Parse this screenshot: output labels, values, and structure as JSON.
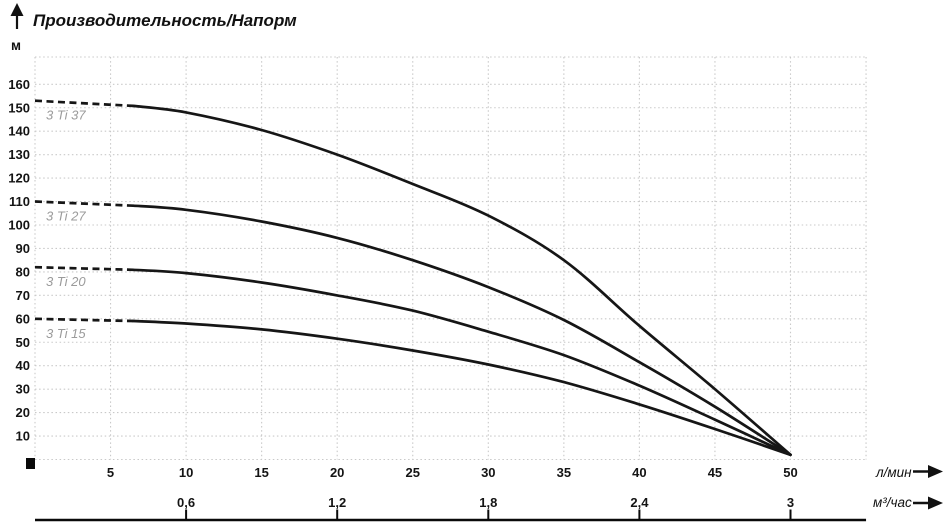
{
  "title": "Производительность/Напорм",
  "y_axis": {
    "unit": "м",
    "ticks": [
      "10",
      "20",
      "30",
      "40",
      "50",
      "60",
      "70",
      "80",
      "90",
      "100",
      "110",
      "120",
      "130",
      "140",
      "150",
      "160"
    ]
  },
  "x_axis_primary": {
    "unit": "л/мин",
    "ticks": [
      "5",
      "10",
      "15",
      "20",
      "25",
      "30",
      "35",
      "40",
      "45",
      "50"
    ]
  },
  "x_axis_secondary": {
    "unit": "м³/час",
    "ticks": [
      "0,6",
      "1,2",
      "1,8",
      "2,4",
      "3"
    ],
    "at_lmin": [
      10,
      20,
      30,
      40,
      50
    ]
  },
  "colors": {
    "curve": "#161616",
    "grid": "#c9c9c9",
    "curve_label": "#9b9b9b",
    "text": "#141414",
    "background": "#ffffff"
  },
  "chart_data": {
    "type": "line",
    "title": "Производительность/Напорм",
    "xlabel": "л/мин",
    "x2label": "м³/час",
    "ylabel": "м",
    "xlim": [
      0,
      55
    ],
    "ylim": [
      0,
      171
    ],
    "grid": "dotted",
    "x": [
      0,
      5,
      10,
      15,
      20,
      25,
      30,
      35,
      40,
      45,
      50
    ],
    "series": [
      {
        "name": "3 Ti 37",
        "head_at_zero_flow_m": 153,
        "values": [
          153,
          152,
          148,
          140.5,
          130,
          117.5,
          104,
          85,
          57,
          30,
          2
        ]
      },
      {
        "name": "3 Ti 27",
        "head_at_zero_flow_m": 110,
        "values": [
          110,
          109,
          106.5,
          101.5,
          94.5,
          85,
          73.5,
          59.5,
          41.5,
          22.5,
          2
        ]
      },
      {
        "name": "3 Ti 20",
        "head_at_zero_flow_m": 82,
        "values": [
          82,
          81.5,
          79.5,
          75.5,
          70,
          63.5,
          54.5,
          44.5,
          31.5,
          17,
          2
        ]
      },
      {
        "name": "3 Ti 15",
        "head_at_zero_flow_m": 60,
        "values": [
          60,
          59.5,
          58,
          55.5,
          51.5,
          46.5,
          40.5,
          33,
          23.5,
          13,
          2
        ]
      }
    ],
    "notes": "Dashed segment on each curve from Q=0 to Q≈6.5 л/мин; all curves converge at Q=50 л/мин"
  }
}
